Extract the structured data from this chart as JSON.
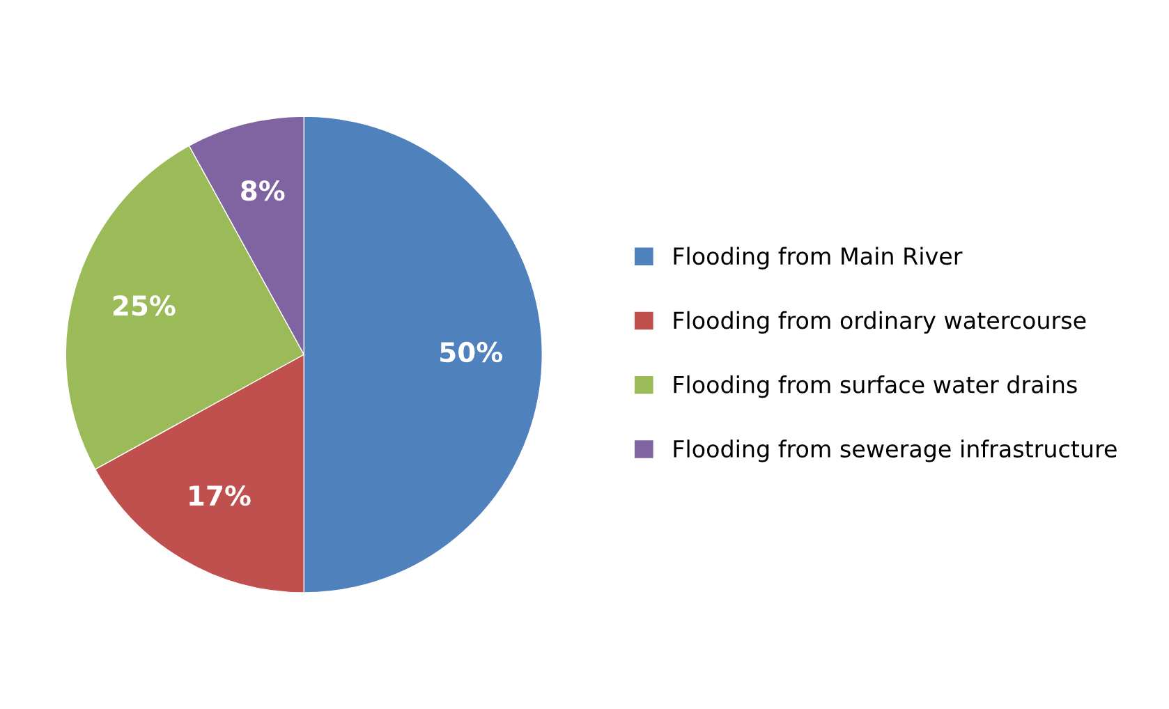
{
  "chart_data": {
    "type": "pie",
    "categories": [
      "Flooding from Main River",
      "Flooding from ordinary watercourse",
      "Flooding from surface water drains",
      "Flooding from sewerage infrastructure"
    ],
    "values": [
      50,
      17,
      25,
      8
    ],
    "colors": [
      "#4f81bd",
      "#c0504d",
      "#9bbb59",
      "#8064a2"
    ],
    "value_labels": [
      "50%",
      "17%",
      "25%",
      "8%"
    ],
    "legend": "right"
  }
}
